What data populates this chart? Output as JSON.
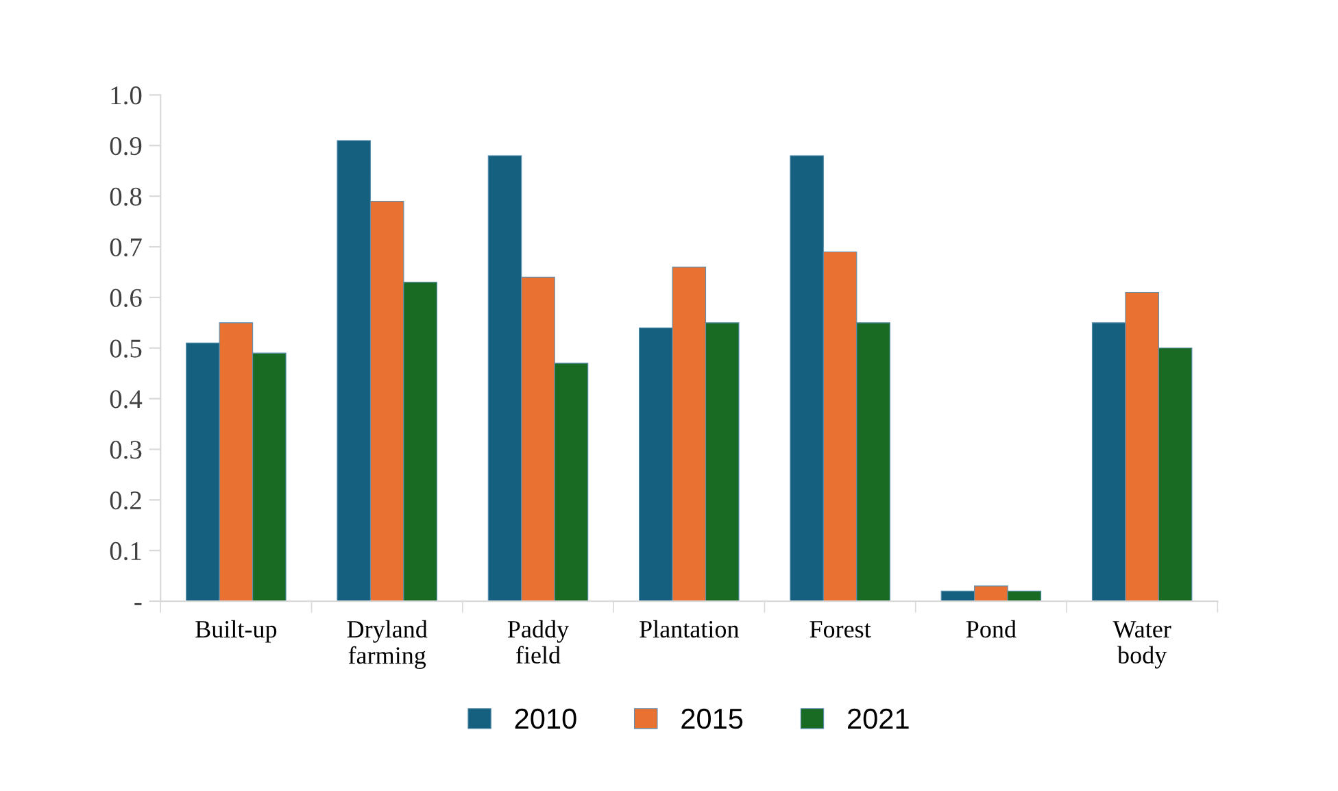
{
  "chart_data": {
    "type": "bar",
    "categories": [
      "Built-up",
      "Dryland\nfarming",
      "Paddy\nfield",
      "Plantation",
      "Forest",
      "Pond",
      "Water\nbody"
    ],
    "series": [
      {
        "name": "2010",
        "color": "#15607f",
        "values": [
          0.51,
          0.91,
          0.88,
          0.54,
          0.88,
          0.02,
          0.55
        ]
      },
      {
        "name": "2015",
        "color": "#e97132",
        "values": [
          0.55,
          0.79,
          0.64,
          0.66,
          0.69,
          0.03,
          0.61
        ]
      },
      {
        "name": "2021",
        "color": "#196b24",
        "values": [
          0.49,
          0.63,
          0.47,
          0.55,
          0.55,
          0.02,
          0.5
        ]
      }
    ],
    "ylim": [
      0,
      1.0
    ],
    "yticks": [
      {
        "value": 0,
        "label": "-"
      },
      0.1,
      0.2,
      0.3,
      0.4,
      0.5,
      0.6,
      0.7,
      0.8,
      0.9,
      {
        "value": 1.0,
        "label": "1.0"
      }
    ],
    "grid": false,
    "legend": "bottom"
  }
}
